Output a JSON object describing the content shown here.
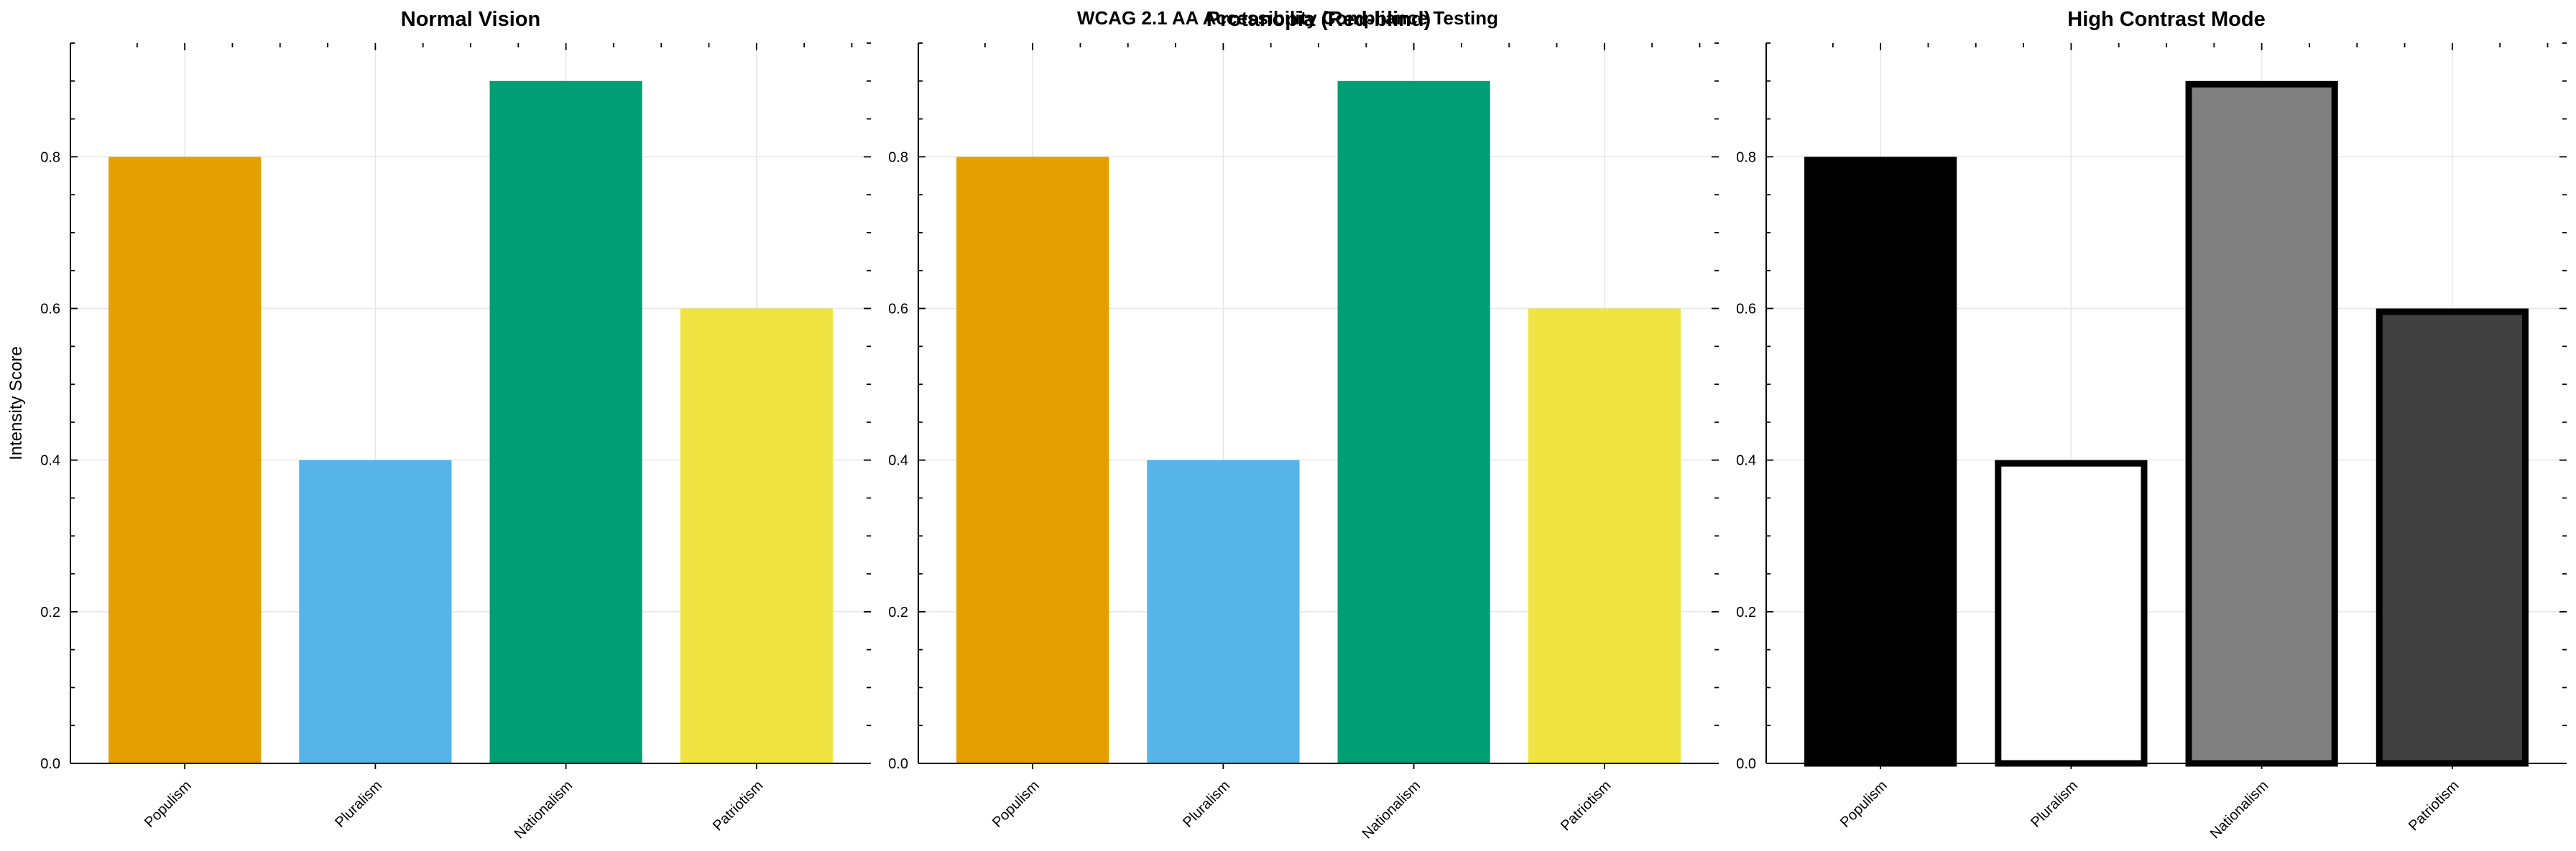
{
  "figure": {
    "suptitle": "WCAG 2.1 AA Accessibility Compliance Testing"
  },
  "colors": {
    "axis": "#000000",
    "grid": "#e6e6e6",
    "background": "#ffffff"
  },
  "chart_data": [
    {
      "type": "bar",
      "title": "Normal Vision",
      "xlabel": "",
      "ylabel": "Intensity Score",
      "categories": [
        "Populism",
        "Pluralism",
        "Nationalism",
        "Patriotism"
      ],
      "values": [
        0.8,
        0.4,
        0.9,
        0.6
      ],
      "colors": [
        "#E69F00",
        "#56B4E9",
        "#009E73",
        "#F0E442"
      ],
      "edgecolors": null,
      "ylim": [
        0,
        0.95
      ],
      "yticks": [
        0.0,
        0.2,
        0.4,
        0.6,
        0.8
      ],
      "ytick_labels": [
        "0.0",
        "0.2",
        "0.4",
        "0.6",
        "0.8"
      ],
      "grid": true
    },
    {
      "type": "bar",
      "title": "Protanopia (Red-blind)",
      "xlabel": "",
      "ylabel": "",
      "categories": [
        "Populism",
        "Pluralism",
        "Nationalism",
        "Patriotism"
      ],
      "values": [
        0.8,
        0.4,
        0.9,
        0.6
      ],
      "colors": [
        "#E69F00",
        "#56B4E9",
        "#009E73",
        "#F0E442"
      ],
      "edgecolors": null,
      "ylim": [
        0,
        0.95
      ],
      "yticks": [
        0.0,
        0.2,
        0.4,
        0.6,
        0.8
      ],
      "ytick_labels": [
        "0.0",
        "0.2",
        "0.4",
        "0.6",
        "0.8"
      ],
      "grid": true
    },
    {
      "type": "bar",
      "title": "High Contrast Mode",
      "xlabel": "",
      "ylabel": "",
      "categories": [
        "Populism",
        "Pluralism",
        "Nationalism",
        "Patriotism"
      ],
      "values": [
        0.8,
        0.4,
        0.9,
        0.6
      ],
      "colors": [
        "#000000",
        "#FFFFFF",
        "#808080",
        "#404040"
      ],
      "edgecolors": [
        "#000000",
        "#000000",
        "#000000",
        "#000000"
      ],
      "ylim": [
        0,
        0.95
      ],
      "yticks": [
        0.0,
        0.2,
        0.4,
        0.6,
        0.8
      ],
      "ytick_labels": [
        "0.0",
        "0.2",
        "0.4",
        "0.6",
        "0.8"
      ],
      "grid": true
    }
  ]
}
